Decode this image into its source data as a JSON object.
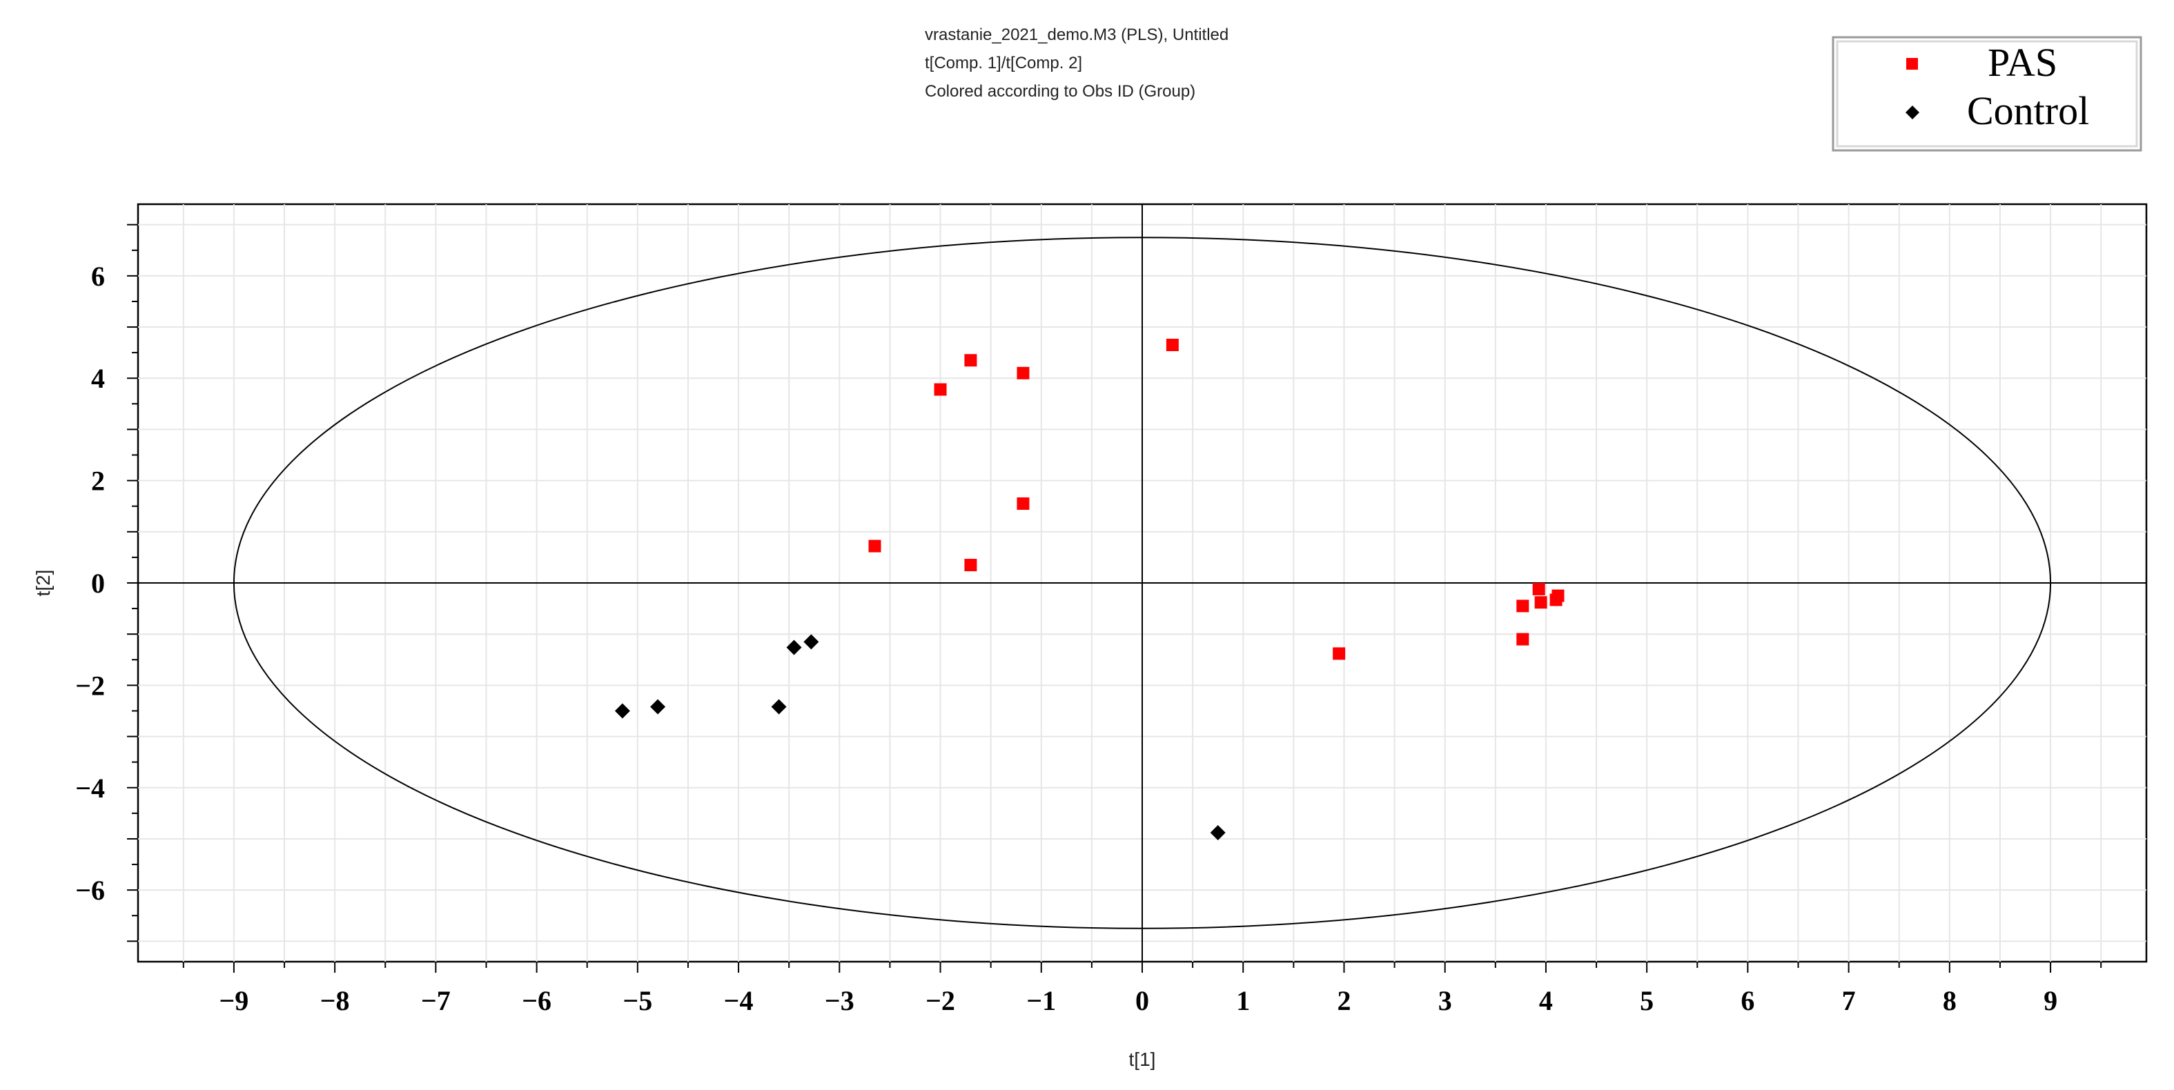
{
  "header": {
    "lines": [
      "vrastanie_2021_demo.M3 (PLS), Untitled",
      "t[Comp. 1]/t[Comp. 2]",
      "Colored according to Obs ID (Group)"
    ]
  },
  "chart_data": {
    "type": "scatter",
    "title": "",
    "xlabel": "t[1]",
    "ylabel": "t[2]",
    "xlim": [
      -9.95,
      9.95
    ],
    "ylim": [
      -7.4,
      7.4
    ],
    "xticks": [
      -9,
      -8,
      -7,
      -6,
      -5,
      -4,
      -3,
      -2,
      -1,
      0,
      1,
      2,
      3,
      4,
      5,
      6,
      7,
      8,
      9
    ],
    "yticks": [
      -6,
      -4,
      -2,
      0,
      2,
      4,
      6
    ],
    "grid": true,
    "legend_position": "top-right",
    "ellipse": {
      "a": 9,
      "b": 6.75
    },
    "series": [
      {
        "name": "PAS",
        "color": "#ff0000",
        "marker": "square",
        "points": [
          {
            "x": 0.3,
            "y": 4.65
          },
          {
            "x": -1.7,
            "y": 4.35
          },
          {
            "x": -1.18,
            "y": 4.1
          },
          {
            "x": -2.0,
            "y": 3.78
          },
          {
            "x": -1.18,
            "y": 1.55
          },
          {
            "x": -2.65,
            "y": 0.72
          },
          {
            "x": -1.7,
            "y": 0.35
          },
          {
            "x": 1.95,
            "y": -1.38
          },
          {
            "x": 3.93,
            "y": -0.12
          },
          {
            "x": 3.77,
            "y": -0.45
          },
          {
            "x": 3.95,
            "y": -0.38
          },
          {
            "x": 4.12,
            "y": -0.25
          },
          {
            "x": 4.1,
            "y": -0.33
          },
          {
            "x": 3.77,
            "y": -1.1
          }
        ]
      },
      {
        "name": "Control",
        "color": "#000000",
        "marker": "diamond",
        "points": [
          {
            "x": -3.28,
            "y": -1.15
          },
          {
            "x": -3.45,
            "y": -1.26
          },
          {
            "x": -3.6,
            "y": -2.42
          },
          {
            "x": -4.8,
            "y": -2.42
          },
          {
            "x": -5.15,
            "y": -2.5
          },
          {
            "x": 0.75,
            "y": -4.88
          }
        ]
      }
    ]
  }
}
